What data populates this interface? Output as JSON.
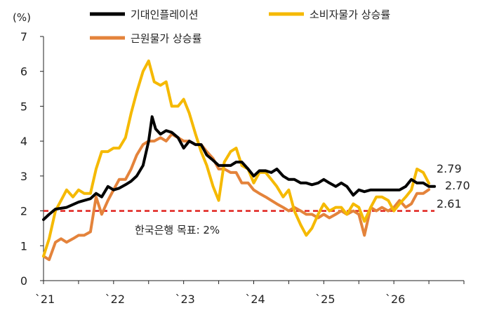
{
  "chart_data": {
    "type": "line",
    "y_unit": "(%)",
    "ylim": [
      0,
      7
    ],
    "y_ticks": [
      0,
      1,
      2,
      3,
      4,
      5,
      6,
      7
    ],
    "x_ticks": [
      {
        "label": "`21",
        "value": 2021.0
      },
      {
        "label": "`22",
        "value": 2022.0
      },
      {
        "label": "`23",
        "value": 2023.0
      },
      {
        "label": "`24",
        "value": 2024.0
      },
      {
        "label": "`25",
        "value": 2025.0
      },
      {
        "label": "`26",
        "value": 2026.0
      }
    ],
    "xlim": [
      2021.0,
      2027.0
    ],
    "grid": false,
    "legend_position": "top",
    "series": [
      {
        "name": "기대인플레이션",
        "color": "#000000",
        "end_label": "2.70",
        "points": [
          [
            2021.0,
            1.75
          ],
          [
            2021.08,
            1.9
          ],
          [
            2021.17,
            2.05
          ],
          [
            2021.33,
            2.1
          ],
          [
            2021.5,
            2.25
          ],
          [
            2021.67,
            2.35
          ],
          [
            2021.75,
            2.5
          ],
          [
            2021.83,
            2.4
          ],
          [
            2021.92,
            2.7
          ],
          [
            2022.0,
            2.6
          ],
          [
            2022.08,
            2.65
          ],
          [
            2022.17,
            2.75
          ],
          [
            2022.25,
            2.85
          ],
          [
            2022.33,
            3.0
          ],
          [
            2022.42,
            3.3
          ],
          [
            2022.5,
            4.0
          ],
          [
            2022.55,
            4.7
          ],
          [
            2022.6,
            4.35
          ],
          [
            2022.67,
            4.2
          ],
          [
            2022.75,
            4.3
          ],
          [
            2022.83,
            4.25
          ],
          [
            2022.92,
            4.1
          ],
          [
            2023.0,
            3.8
          ],
          [
            2023.08,
            4.0
          ],
          [
            2023.17,
            3.9
          ],
          [
            2023.25,
            3.9
          ],
          [
            2023.33,
            3.6
          ],
          [
            2023.42,
            3.45
          ],
          [
            2023.5,
            3.3
          ],
          [
            2023.58,
            3.3
          ],
          [
            2023.67,
            3.3
          ],
          [
            2023.75,
            3.4
          ],
          [
            2023.83,
            3.4
          ],
          [
            2023.92,
            3.2
          ],
          [
            2024.0,
            3.0
          ],
          [
            2024.08,
            3.15
          ],
          [
            2024.17,
            3.15
          ],
          [
            2024.25,
            3.1
          ],
          [
            2024.33,
            3.2
          ],
          [
            2024.42,
            3.0
          ],
          [
            2024.5,
            2.9
          ],
          [
            2024.58,
            2.9
          ],
          [
            2024.67,
            2.8
          ],
          [
            2024.75,
            2.8
          ],
          [
            2024.83,
            2.75
          ],
          [
            2024.92,
            2.8
          ],
          [
            2025.0,
            2.9
          ],
          [
            2025.08,
            2.8
          ],
          [
            2025.17,
            2.7
          ],
          [
            2025.25,
            2.8
          ],
          [
            2025.33,
            2.7
          ],
          [
            2025.42,
            2.45
          ],
          [
            2025.5,
            2.6
          ],
          [
            2025.58,
            2.55
          ],
          [
            2025.67,
            2.6
          ],
          [
            2025.75,
            2.6
          ],
          [
            2025.83,
            2.6
          ],
          [
            2025.92,
            2.6
          ],
          [
            2026.0,
            2.6
          ],
          [
            2026.08,
            2.6
          ],
          [
            2026.17,
            2.7
          ],
          [
            2026.25,
            2.9
          ],
          [
            2026.33,
            2.8
          ],
          [
            2026.42,
            2.8
          ],
          [
            2026.5,
            2.7
          ],
          [
            2026.58,
            2.7
          ]
        ]
      },
      {
        "name": "소비자물가 상승률",
        "color": "#F5B900",
        "end_label": "2.79",
        "points": [
          [
            2021.0,
            0.7
          ],
          [
            2021.08,
            1.2
          ],
          [
            2021.17,
            2.0
          ],
          [
            2021.25,
            2.3
          ],
          [
            2021.33,
            2.6
          ],
          [
            2021.42,
            2.4
          ],
          [
            2021.5,
            2.6
          ],
          [
            2021.58,
            2.5
          ],
          [
            2021.67,
            2.5
          ],
          [
            2021.75,
            3.2
          ],
          [
            2021.83,
            3.7
          ],
          [
            2021.92,
            3.7
          ],
          [
            2022.0,
            3.8
          ],
          [
            2022.08,
            3.8
          ],
          [
            2022.17,
            4.1
          ],
          [
            2022.25,
            4.8
          ],
          [
            2022.33,
            5.4
          ],
          [
            2022.42,
            6.0
          ],
          [
            2022.5,
            6.3
          ],
          [
            2022.58,
            5.7
          ],
          [
            2022.67,
            5.6
          ],
          [
            2022.75,
            5.7
          ],
          [
            2022.83,
            5.0
          ],
          [
            2022.92,
            5.0
          ],
          [
            2023.0,
            5.2
          ],
          [
            2023.08,
            4.8
          ],
          [
            2023.17,
            4.2
          ],
          [
            2023.25,
            3.7
          ],
          [
            2023.33,
            3.3
          ],
          [
            2023.42,
            2.7
          ],
          [
            2023.5,
            2.3
          ],
          [
            2023.58,
            3.4
          ],
          [
            2023.67,
            3.7
          ],
          [
            2023.75,
            3.8
          ],
          [
            2023.83,
            3.3
          ],
          [
            2023.92,
            3.2
          ],
          [
            2024.0,
            2.8
          ],
          [
            2024.08,
            3.1
          ],
          [
            2024.17,
            3.1
          ],
          [
            2024.25,
            2.9
          ],
          [
            2024.33,
            2.7
          ],
          [
            2024.42,
            2.4
          ],
          [
            2024.5,
            2.6
          ],
          [
            2024.58,
            2.0
          ],
          [
            2024.67,
            1.6
          ],
          [
            2024.75,
            1.3
          ],
          [
            2024.83,
            1.5
          ],
          [
            2024.92,
            1.9
          ],
          [
            2025.0,
            2.2
          ],
          [
            2025.08,
            2.0
          ],
          [
            2025.17,
            2.1
          ],
          [
            2025.25,
            2.1
          ],
          [
            2025.33,
            1.9
          ],
          [
            2025.42,
            2.2
          ],
          [
            2025.5,
            2.1
          ],
          [
            2025.58,
            1.7
          ],
          [
            2025.67,
            2.1
          ],
          [
            2025.75,
            2.4
          ],
          [
            2025.83,
            2.4
          ],
          [
            2025.92,
            2.3
          ],
          [
            2026.0,
            2.0
          ],
          [
            2026.08,
            2.2
          ],
          [
            2026.17,
            2.4
          ],
          [
            2026.25,
            2.6
          ],
          [
            2026.33,
            3.2
          ],
          [
            2026.42,
            3.1
          ],
          [
            2026.5,
            2.79
          ]
        ]
      },
      {
        "name": "근원물가 상승률",
        "color": "#E4833B",
        "end_label": "2.61",
        "points": [
          [
            2021.0,
            0.7
          ],
          [
            2021.08,
            0.6
          ],
          [
            2021.17,
            1.1
          ],
          [
            2021.25,
            1.2
          ],
          [
            2021.33,
            1.1
          ],
          [
            2021.42,
            1.2
          ],
          [
            2021.5,
            1.3
          ],
          [
            2021.58,
            1.3
          ],
          [
            2021.67,
            1.4
          ],
          [
            2021.75,
            2.4
          ],
          [
            2021.83,
            1.9
          ],
          [
            2021.92,
            2.3
          ],
          [
            2022.0,
            2.6
          ],
          [
            2022.08,
            2.9
          ],
          [
            2022.17,
            2.9
          ],
          [
            2022.25,
            3.2
          ],
          [
            2022.33,
            3.6
          ],
          [
            2022.42,
            3.9
          ],
          [
            2022.5,
            4.0
          ],
          [
            2022.58,
            4.0
          ],
          [
            2022.67,
            4.1
          ],
          [
            2022.75,
            4.0
          ],
          [
            2022.83,
            4.2
          ],
          [
            2022.92,
            4.1
          ],
          [
            2023.0,
            4.0
          ],
          [
            2023.08,
            4.0
          ],
          [
            2023.17,
            3.9
          ],
          [
            2023.25,
            3.9
          ],
          [
            2023.33,
            3.7
          ],
          [
            2023.42,
            3.5
          ],
          [
            2023.5,
            3.2
          ],
          [
            2023.58,
            3.2
          ],
          [
            2023.67,
            3.1
          ],
          [
            2023.75,
            3.1
          ],
          [
            2023.83,
            2.8
          ],
          [
            2023.92,
            2.8
          ],
          [
            2024.0,
            2.6
          ],
          [
            2024.08,
            2.5
          ],
          [
            2024.17,
            2.4
          ],
          [
            2024.25,
            2.3
          ],
          [
            2024.33,
            2.2
          ],
          [
            2024.42,
            2.1
          ],
          [
            2024.5,
            2.0
          ],
          [
            2024.58,
            2.1
          ],
          [
            2024.67,
            2.0
          ],
          [
            2024.75,
            1.9
          ],
          [
            2024.83,
            1.9
          ],
          [
            2024.92,
            1.8
          ],
          [
            2025.0,
            1.9
          ],
          [
            2025.08,
            1.8
          ],
          [
            2025.17,
            1.9
          ],
          [
            2025.25,
            2.0
          ],
          [
            2025.33,
            1.9
          ],
          [
            2025.42,
            2.0
          ],
          [
            2025.5,
            1.9
          ],
          [
            2025.58,
            1.3
          ],
          [
            2025.67,
            2.1
          ],
          [
            2025.75,
            2.0
          ],
          [
            2025.83,
            2.1
          ],
          [
            2025.92,
            2.0
          ],
          [
            2026.0,
            2.1
          ],
          [
            2026.08,
            2.3
          ],
          [
            2026.17,
            2.1
          ],
          [
            2026.25,
            2.2
          ],
          [
            2026.33,
            2.5
          ],
          [
            2026.42,
            2.5
          ],
          [
            2026.5,
            2.61
          ]
        ]
      }
    ],
    "reference_line": {
      "value": 2.0,
      "label": "한국은행 목표: 2%",
      "color": "#E0201B"
    }
  }
}
